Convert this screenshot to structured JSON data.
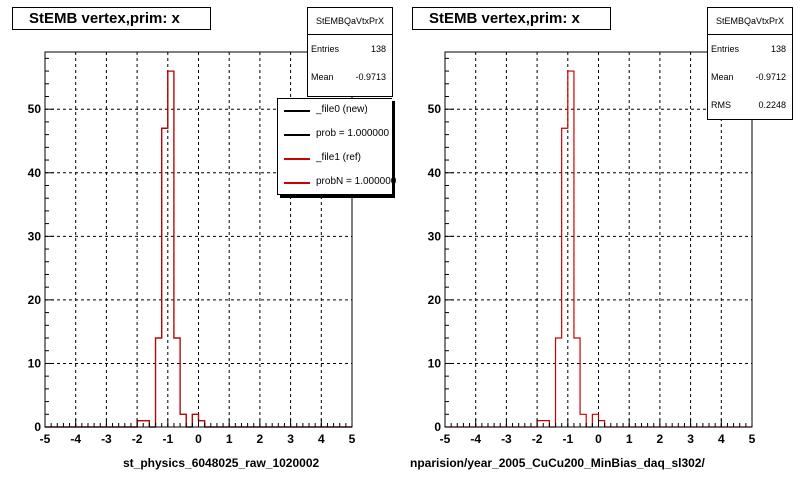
{
  "footer_text": "",
  "colors": {
    "new": "#000000",
    "ref": "#cc0000",
    "grid": "#000000"
  },
  "panels": [
    {
      "title": "StEMB  vertex,prim: x",
      "stats": {
        "name": "StEMBQaVtxPrX",
        "rows": [
          {
            "label": "Entries",
            "value": "138"
          },
          {
            "label": "Mean",
            "value": "-0.9713"
          }
        ]
      },
      "legend": [
        {
          "label": "_file0 (new)",
          "color": "#000000"
        },
        {
          "label": "prob = 1.000000",
          "color": "#000000"
        },
        {
          "label": "_file1 (ref)",
          "color": "#cc0000"
        },
        {
          "label": "probN = 1.000000",
          "color": "#cc0000"
        }
      ],
      "xlabel": "st_physics_6048025_raw_1020002"
    },
    {
      "title": "StEMB  vertex,prim: x",
      "stats": {
        "name": "StEMBQaVtxPrX",
        "rows": [
          {
            "label": "Entries",
            "value": "138"
          },
          {
            "label": "Mean",
            "value": "-0.9712"
          },
          {
            "label": "RMS",
            "value": "0.2248"
          }
        ]
      },
      "legend": [],
      "xlabel": "nparision/year_2005_CuCu200_MinBias_daq_sl302/"
    }
  ],
  "chart_data": [
    {
      "type": "bar",
      "histogram": true,
      "bin_edges_start": -5,
      "bin_width": 0.2,
      "xlim": [
        -5,
        5
      ],
      "ylim": [
        0,
        59
      ],
      "xticks": [
        -5,
        -4,
        -3,
        -2,
        -1,
        0,
        1,
        2,
        3,
        4,
        5
      ],
      "yticks": [
        0,
        10,
        20,
        30,
        40,
        50
      ],
      "grid": true,
      "series": [
        {
          "name": "_file0 (new)",
          "color": "#000000",
          "values": [
            0,
            0,
            0,
            0,
            0,
            0,
            0,
            0,
            0,
            0,
            0,
            0,
            0,
            0,
            0,
            1,
            1,
            0,
            14,
            47,
            56,
            14,
            2,
            0,
            2,
            1,
            0,
            0,
            0,
            0,
            0,
            0,
            0,
            0,
            0,
            0,
            0,
            0,
            0,
            0,
            0,
            0,
            0,
            0,
            0,
            0,
            0,
            0,
            0,
            0
          ]
        },
        {
          "name": "_file1 (ref)",
          "color": "#cc0000",
          "values": [
            0,
            0,
            0,
            0,
            0,
            0,
            0,
            0,
            0,
            0,
            0,
            0,
            0,
            0,
            0,
            1,
            1,
            0,
            14,
            47,
            56,
            14,
            2,
            0,
            2,
            1,
            0,
            0,
            0,
            0,
            0,
            0,
            0,
            0,
            0,
            0,
            0,
            0,
            0,
            0,
            0,
            0,
            0,
            0,
            0,
            0,
            0,
            0,
            0,
            0
          ]
        }
      ]
    },
    {
      "type": "bar",
      "histogram": true,
      "bin_edges_start": -5,
      "bin_width": 0.2,
      "xlim": [
        -5,
        5
      ],
      "ylim": [
        0,
        59
      ],
      "xticks": [
        -5,
        -4,
        -3,
        -2,
        -1,
        0,
        1,
        2,
        3,
        4,
        5
      ],
      "yticks": [
        0,
        10,
        20,
        30,
        40,
        50
      ],
      "grid": true,
      "series": [
        {
          "name": "StEMBQaVtxPrX",
          "color": "#cc0000",
          "values": [
            0,
            0,
            0,
            0,
            0,
            0,
            0,
            0,
            0,
            0,
            0,
            0,
            0,
            0,
            0,
            1,
            1,
            0,
            14,
            47,
            56,
            14,
            2,
            0,
            2,
            1,
            0,
            0,
            0,
            0,
            0,
            0,
            0,
            0,
            0,
            0,
            0,
            0,
            0,
            0,
            0,
            0,
            0,
            0,
            0,
            0,
            0,
            0,
            0,
            0
          ]
        }
      ]
    }
  ]
}
